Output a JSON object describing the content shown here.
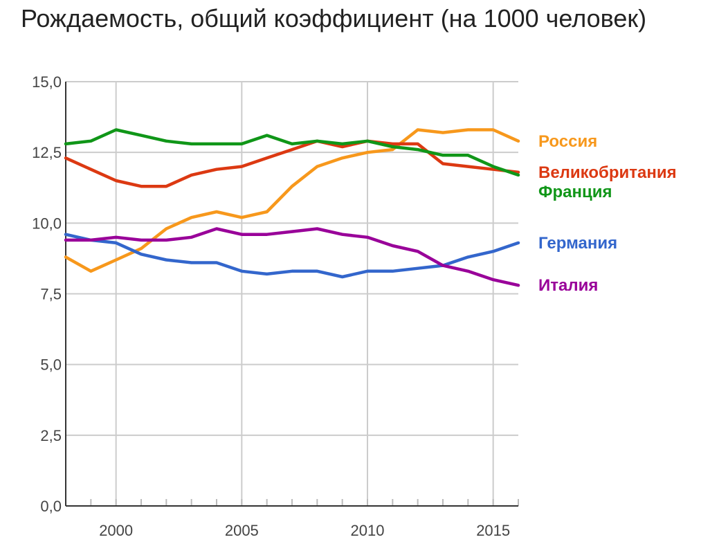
{
  "chart_data": {
    "type": "line",
    "title": "Рождаемость, общий коэффициент (на 1000 человек)",
    "xlabel": "",
    "ylabel": "",
    "xlim": [
      1998,
      2016
    ],
    "ylim": [
      0,
      15
    ],
    "x_ticks": [
      2000,
      2005,
      2010,
      2015
    ],
    "x_tick_labels": [
      "2000",
      "2005",
      "2010",
      "2015"
    ],
    "y_ticks": [
      0,
      2.5,
      5,
      7.5,
      10,
      12.5,
      15
    ],
    "y_tick_labels": [
      "0,0",
      "2,5",
      "5,0",
      "7,5",
      "10,0",
      "12,5",
      "15,0"
    ],
    "grid": true,
    "legend_position": "right, next to line ends",
    "x": [
      1998,
      1999,
      2000,
      2001,
      2002,
      2003,
      2004,
      2005,
      2006,
      2007,
      2008,
      2009,
      2010,
      2011,
      2012,
      2013,
      2014,
      2015,
      2016
    ],
    "series": [
      {
        "name": "Россия",
        "color": "#f7981c",
        "values": [
          8.8,
          8.3,
          8.7,
          9.1,
          9.8,
          10.2,
          10.4,
          10.2,
          10.4,
          11.3,
          12.0,
          12.3,
          12.5,
          12.6,
          13.3,
          13.2,
          13.3,
          13.3,
          12.9
        ]
      },
      {
        "name": "Великобритания",
        "color": "#dc3912",
        "values": [
          12.3,
          11.9,
          11.5,
          11.3,
          11.3,
          11.7,
          11.9,
          12.0,
          12.3,
          12.6,
          12.9,
          12.7,
          12.9,
          12.8,
          12.8,
          12.1,
          12.0,
          11.9,
          11.8
        ]
      },
      {
        "name": "Франция",
        "color": "#109618",
        "values": [
          12.8,
          12.9,
          13.3,
          13.1,
          12.9,
          12.8,
          12.8,
          12.8,
          13.1,
          12.8,
          12.9,
          12.8,
          12.9,
          12.7,
          12.6,
          12.4,
          12.4,
          12.0,
          11.7
        ]
      },
      {
        "name": "Германия",
        "color": "#3366cc",
        "values": [
          9.6,
          9.4,
          9.3,
          8.9,
          8.7,
          8.6,
          8.6,
          8.3,
          8.2,
          8.3,
          8.3,
          8.1,
          8.3,
          8.3,
          8.4,
          8.5,
          8.8,
          9.0,
          9.3
        ]
      },
      {
        "name": "Италия",
        "color": "#990099",
        "values": [
          9.4,
          9.4,
          9.5,
          9.4,
          9.4,
          9.5,
          9.8,
          9.6,
          9.6,
          9.7,
          9.8,
          9.6,
          9.5,
          9.2,
          9.0,
          8.5,
          8.3,
          8.0,
          7.8
        ]
      }
    ]
  }
}
